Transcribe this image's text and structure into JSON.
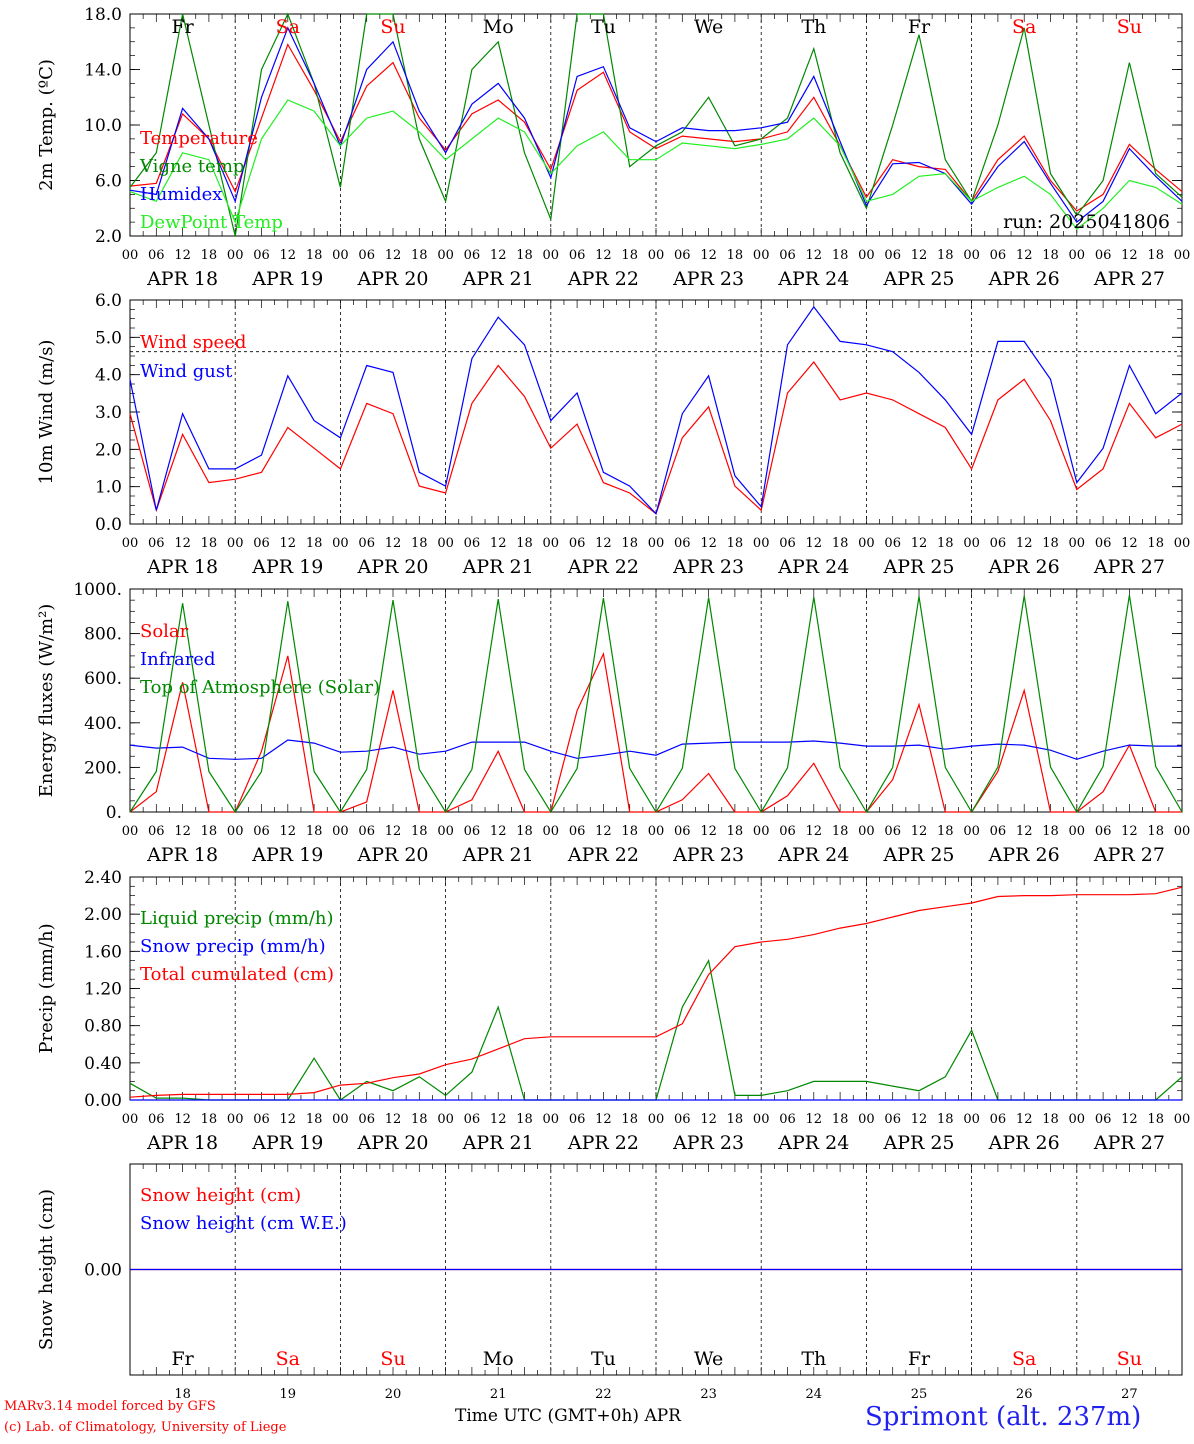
{
  "run_label": "run: 2025041806",
  "hour_labels": [
    "00",
    "06",
    "12",
    "18"
  ],
  "date_labels": [
    "APR 18",
    "APR 19",
    "APR 20",
    "APR 21",
    "APR 22",
    "APR 23",
    "APR 24",
    "APR 25",
    "APR 26",
    "APR 27"
  ],
  "day_names": [
    {
      "text": "Fr",
      "weekend": false
    },
    {
      "text": "Sa",
      "weekend": true
    },
    {
      "text": "Su",
      "weekend": true
    },
    {
      "text": "Mo",
      "weekend": false
    },
    {
      "text": "Tu",
      "weekend": false
    },
    {
      "text": "We",
      "weekend": false
    },
    {
      "text": "Th",
      "weekend": false
    },
    {
      "text": "Fr",
      "weekend": false
    },
    {
      "text": "Sa",
      "weekend": true
    },
    {
      "text": "Su",
      "weekend": true
    }
  ],
  "day_numbers": [
    "18",
    "19",
    "20",
    "21",
    "22",
    "23",
    "24",
    "25",
    "26",
    "27"
  ],
  "colors": {
    "red": "#ff0000",
    "green": "#008800",
    "blue": "#0000ff",
    "lightgreen": "#22ee22",
    "weekend": "#ff0000"
  },
  "footer": {
    "model": "MARv3.14 model forced by GFS",
    "lab": "(c) Lab. of Climatology, University of Liege",
    "time_axis": "Time UTC (GMT+0h) APR",
    "station": "Sprimont (alt. 237m)"
  },
  "chart_data": [
    {
      "type": "line",
      "ylabel": "2m Temp. (ºC)",
      "ylim": [
        2.0,
        18.0
      ],
      "y_ticks": [
        "2.0",
        "6.0",
        "10.0",
        "14.0",
        "18.0"
      ],
      "hours_from": "2025-04-18T00:00Z",
      "x": [
        0,
        6,
        12,
        18,
        24,
        30,
        36,
        42,
        48,
        54,
        60,
        66,
        72,
        78,
        84,
        90,
        96,
        102,
        108,
        114,
        120,
        126,
        132,
        138,
        144,
        150,
        156,
        162,
        168,
        174,
        180,
        186,
        192,
        198,
        204,
        210,
        216,
        222,
        228,
        234,
        240
      ],
      "series": [
        {
          "name": "Temperature",
          "color": "red",
          "values": [
            5.6,
            5.8,
            10.8,
            9.0,
            5.2,
            10.5,
            15.8,
            12.5,
            8.8,
            12.8,
            14.5,
            10.5,
            8.2,
            10.8,
            11.8,
            10.2,
            6.8,
            12.5,
            13.8,
            9.5,
            8.3,
            9.2,
            9.0,
            8.8,
            9.0,
            9.5,
            12.0,
            8.5,
            4.8,
            7.5,
            7.0,
            6.8,
            4.5,
            7.5,
            9.2,
            6.0,
            3.8,
            5.0,
            8.6,
            6.8,
            5.2
          ]
        },
        {
          "name": "Vigne temp",
          "color": "green",
          "values": [
            5.5,
            8.0,
            18.0,
            10.0,
            2.0,
            14.0,
            18.0,
            13.0,
            5.5,
            18.0,
            18.0,
            9.0,
            4.5,
            14.0,
            16.0,
            8.0,
            3.2,
            18.0,
            18.0,
            7.0,
            8.5,
            9.5,
            12.0,
            8.5,
            9.0,
            10.5,
            15.5,
            8.0,
            4.0,
            10.0,
            16.5,
            7.5,
            4.5,
            10.0,
            17.0,
            6.5,
            3.5,
            6.0,
            14.5,
            6.5,
            4.8
          ]
        },
        {
          "name": "Humidex",
          "color": "blue",
          "values": [
            5.3,
            5.0,
            11.2,
            9.0,
            4.5,
            12.0,
            17.0,
            13.0,
            8.5,
            14.0,
            16.0,
            11.0,
            8.0,
            11.5,
            13.0,
            10.5,
            6.2,
            13.5,
            14.2,
            9.8,
            8.8,
            9.8,
            9.6,
            9.6,
            9.8,
            10.2,
            13.5,
            8.8,
            4.2,
            7.2,
            7.3,
            6.5,
            4.3,
            7.0,
            8.8,
            5.8,
            3.0,
            4.5,
            8.3,
            6.3,
            4.5
          ]
        },
        {
          "name": "DewPoint Temp",
          "color": "lightgreen",
          "values": [
            5.2,
            4.5,
            8.0,
            7.5,
            3.0,
            9.0,
            11.8,
            11.0,
            8.5,
            10.5,
            11.0,
            9.5,
            7.5,
            9.0,
            10.5,
            9.5,
            6.5,
            8.5,
            9.5,
            7.5,
            7.5,
            8.7,
            8.5,
            8.3,
            8.6,
            9.0,
            10.5,
            8.5,
            4.5,
            5.0,
            6.3,
            6.5,
            4.5,
            5.5,
            6.3,
            5.0,
            2.5,
            4.0,
            6.0,
            5.5,
            4.3
          ]
        }
      ]
    },
    {
      "type": "line",
      "ylabel": "10m Wind (m/s)",
      "ylim": [
        0.0,
        6.5
      ],
      "y_ticks": [
        "0.0",
        "1.0",
        "2.0",
        "3.0",
        "4.0",
        "5.0",
        "6.0"
      ],
      "ref_line": 5.0,
      "hours_from": "2025-04-18T00:00Z",
      "x": [
        0,
        6,
        12,
        18,
        24,
        30,
        36,
        42,
        48,
        54,
        60,
        66,
        72,
        78,
        84,
        90,
        96,
        102,
        108,
        114,
        120,
        126,
        132,
        138,
        144,
        150,
        156,
        162,
        168,
        174,
        180,
        186,
        192,
        198,
        204,
        210,
        216,
        222,
        228,
        234,
        240
      ],
      "series": [
        {
          "name": "Wind speed",
          "color": "red",
          "values": [
            3.2,
            0.4,
            2.6,
            1.2,
            1.3,
            1.5,
            2.8,
            2.2,
            1.6,
            3.5,
            3.2,
            1.1,
            0.9,
            3.5,
            4.6,
            3.7,
            2.2,
            2.9,
            1.2,
            0.9,
            0.3,
            2.5,
            3.4,
            1.1,
            0.4,
            3.8,
            4.7,
            3.6,
            3.8,
            3.6,
            3.2,
            2.8,
            1.6,
            3.6,
            4.2,
            3.0,
            1.0,
            1.6,
            3.5,
            2.5,
            2.9
          ]
        },
        {
          "name": "Wind gust",
          "color": "blue",
          "values": [
            4.2,
            0.4,
            3.2,
            1.6,
            1.6,
            2.0,
            4.3,
            3.0,
            2.5,
            4.6,
            4.4,
            1.5,
            1.1,
            4.8,
            6.0,
            5.2,
            3.0,
            3.8,
            1.5,
            1.1,
            0.3,
            3.2,
            4.3,
            1.4,
            0.5,
            5.2,
            6.3,
            5.3,
            5.2,
            5.0,
            4.4,
            3.6,
            2.6,
            5.3,
            5.3,
            4.2,
            1.2,
            2.2,
            4.6,
            3.2,
            3.8
          ]
        }
      ]
    },
    {
      "type": "line",
      "ylabel": "Energy fluxes (W/m²)",
      "ylim": [
        0,
        1100
      ],
      "y_ticks": [
        "0.",
        "200.",
        "400.",
        "600.",
        "800.",
        "1000."
      ],
      "hours_from": "2025-04-18T00:00Z",
      "x": [
        0,
        6,
        12,
        18,
        24,
        30,
        36,
        42,
        48,
        54,
        60,
        66,
        72,
        78,
        84,
        90,
        96,
        102,
        108,
        114,
        120,
        126,
        132,
        138,
        144,
        150,
        156,
        162,
        168,
        174,
        180,
        186,
        192,
        198,
        204,
        210,
        216,
        222,
        228,
        234,
        240
      ],
      "series": [
        {
          "name": "Solar",
          "color": "red",
          "values": [
            0,
            100,
            640,
            0,
            0,
            300,
            770,
            0,
            0,
            50,
            600,
            0,
            0,
            60,
            300,
            0,
            0,
            500,
            780,
            0,
            0,
            60,
            190,
            0,
            0,
            80,
            240,
            0,
            0,
            160,
            530,
            0,
            0,
            200,
            600,
            0,
            0,
            100,
            330,
            0,
            0
          ]
        },
        {
          "name": "Infrared",
          "color": "blue",
          "values": [
            330,
            315,
            320,
            265,
            260,
            265,
            355,
            340,
            295,
            300,
            320,
            285,
            300,
            345,
            345,
            345,
            300,
            265,
            280,
            300,
            280,
            335,
            340,
            345,
            345,
            345,
            350,
            340,
            325,
            325,
            330,
            310,
            325,
            335,
            330,
            305,
            260,
            300,
            330,
            325,
            325
          ]
        },
        {
          "name": "Top of Atmosphere (Solar)",
          "color": "green",
          "values": [
            0,
            200,
            1030,
            200,
            0,
            200,
            1040,
            200,
            0,
            210,
            1045,
            210,
            0,
            210,
            1050,
            210,
            0,
            215,
            1055,
            215,
            0,
            215,
            1058,
            215,
            0,
            218,
            1060,
            218,
            0,
            220,
            1063,
            220,
            0,
            222,
            1066,
            222,
            0,
            225,
            1070,
            225,
            0
          ]
        }
      ]
    },
    {
      "type": "line",
      "ylabel": "Precip (mm/h)",
      "ylim": [
        0.0,
        2.4
      ],
      "y_ticks": [
        "0.00",
        "0.40",
        "0.80",
        "1.20",
        "1.60",
        "2.00",
        "2.40"
      ],
      "hours_from": "2025-04-18T00:00Z",
      "x": [
        0,
        6,
        12,
        18,
        24,
        30,
        36,
        42,
        48,
        54,
        60,
        66,
        72,
        78,
        84,
        90,
        96,
        102,
        108,
        114,
        120,
        126,
        132,
        138,
        144,
        150,
        156,
        162,
        168,
        174,
        180,
        186,
        192,
        198,
        204,
        210,
        216,
        222,
        228,
        234,
        240
      ],
      "series": [
        {
          "name": "Liquid precip (mm/h)",
          "color": "green",
          "values": [
            0.18,
            0.02,
            0.02,
            0.0,
            0.0,
            0.0,
            0.0,
            0.45,
            0.0,
            0.2,
            0.1,
            0.25,
            0.05,
            0.3,
            1.0,
            0.0,
            0.0,
            0.0,
            0.0,
            0.0,
            0.0,
            1.0,
            1.5,
            0.05,
            0.05,
            0.1,
            0.2,
            0.2,
            0.2,
            0.15,
            0.1,
            0.25,
            0.75,
            0.0,
            0.0,
            0.0,
            0.0,
            0.0,
            0.0,
            0.0,
            0.25
          ]
        },
        {
          "name": "Snow precip (mm/h)",
          "color": "blue",
          "values": [
            0,
            0,
            0,
            0,
            0,
            0,
            0,
            0,
            0,
            0,
            0,
            0,
            0,
            0,
            0,
            0,
            0,
            0,
            0,
            0,
            0,
            0,
            0,
            0,
            0,
            0,
            0,
            0,
            0,
            0,
            0,
            0,
            0,
            0,
            0,
            0,
            0,
            0,
            0,
            0,
            0
          ]
        },
        {
          "name": "Total cumulated (cm)",
          "color": "red",
          "values": [
            0.03,
            0.05,
            0.06,
            0.06,
            0.06,
            0.06,
            0.06,
            0.08,
            0.16,
            0.18,
            0.24,
            0.28,
            0.38,
            0.44,
            0.55,
            0.66,
            0.68,
            0.68,
            0.68,
            0.68,
            0.68,
            0.82,
            1.35,
            1.65,
            1.7,
            1.73,
            1.78,
            1.85,
            1.9,
            1.97,
            2.04,
            2.08,
            2.12,
            2.19,
            2.2,
            2.2,
            2.21,
            2.21,
            2.21,
            2.22,
            2.29
          ]
        }
      ]
    },
    {
      "type": "line",
      "ylabel": "Snow height (cm)",
      "ylim": [
        -1.0,
        1.0
      ],
      "y_ticks": [
        "0.00"
      ],
      "hours_from": "2025-04-18T00:00Z",
      "x": [
        0,
        240
      ],
      "series": [
        {
          "name": "Snow height (cm)",
          "color": "red",
          "values": [
            0.0,
            0.0
          ]
        },
        {
          "name": "Snow height (cm W.E.)",
          "color": "blue",
          "values": [
            0.0,
            0.0
          ]
        }
      ]
    }
  ]
}
